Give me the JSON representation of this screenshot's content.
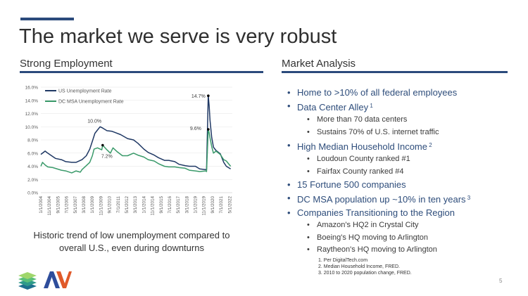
{
  "title": "The market we serve is very robust",
  "left_section": {
    "heading": "Strong Employment"
  },
  "right_section": {
    "heading": "Market Analysis"
  },
  "caption": "Historic trend of low unemployment compared to overall U.S., even during downturns",
  "bullets": [
    {
      "level": 1,
      "text": "Home to >10% of all federal employees",
      "sup": ""
    },
    {
      "level": 1,
      "text": "Data Center Alley",
      "sup": "1"
    },
    {
      "level": 2,
      "text": "More than 70 data centers",
      "sup": ""
    },
    {
      "level": 2,
      "text": "Sustains 70% of U.S. internet traffic",
      "sup": ""
    },
    {
      "level": 1,
      "text": "High Median Household Income",
      "sup": "2"
    },
    {
      "level": 2,
      "text": "Loudoun County ranked #1",
      "sup": ""
    },
    {
      "level": 2,
      "text": "Fairfax County ranked #4",
      "sup": ""
    },
    {
      "level": 1,
      "text": "15 Fortune 500 companies",
      "sup": ""
    },
    {
      "level": 1,
      "text": "DC MSA population up ~10% in ten years",
      "sup": "3"
    },
    {
      "level": 1,
      "text": "Companies Transitioning to the Region",
      "sup": ""
    },
    {
      "level": 2,
      "text": "Amazon's HQ2 in Crystal City",
      "sup": ""
    },
    {
      "level": 2,
      "text": "Boeing's HQ moving to Arlington",
      "sup": ""
    },
    {
      "level": 2,
      "text": "Raytheon's HQ moving to Arlington",
      "sup": ""
    }
  ],
  "footnotes": [
    "1.   Per DigitalTech.com",
    "2.   Median Household Income, FRED.",
    "3.   2010 to 2020 population change, FRED."
  ],
  "page_number": "5",
  "colors": {
    "accent": "#2b4a7c",
    "us_series": "#1f3864",
    "dc_series": "#3a9a6a"
  },
  "chart_data": {
    "type": "line",
    "ylim": [
      0,
      16
    ],
    "y_ticks": [
      0,
      2,
      4,
      6,
      8,
      10,
      12,
      14,
      16
    ],
    "y_tick_format": "{v}.0%",
    "x_ticks": [
      "1/1/2004",
      "11/1/2004",
      "9/1/2005",
      "7/1/2006",
      "5/1/2007",
      "3/1/2008",
      "1/1/2009",
      "11/1/2009",
      "9/1/2010",
      "7/1/2011",
      "5/1/2012",
      "3/1/2013",
      "1/1/2014",
      "11/1/2014",
      "9/1/2015",
      "7/1/2016",
      "5/1/2017",
      "3/1/2018",
      "1/1/2019",
      "11/1/2019",
      "9/1/2020",
      "7/1/2021",
      "5/1/2022"
    ],
    "legend_position": "top-left",
    "series": [
      {
        "name": "US Unemployment Rate",
        "color": "#1f3864",
        "points": [
          [
            "2004-01",
            5.8
          ],
          [
            "2004-06",
            6.3
          ],
          [
            "2004-09",
            6.0
          ],
          [
            "2005-06",
            5.2
          ],
          [
            "2006-01",
            5.0
          ],
          [
            "2006-06",
            4.7
          ],
          [
            "2007-01",
            4.6
          ],
          [
            "2007-06",
            4.6
          ],
          [
            "2008-01",
            5.0
          ],
          [
            "2008-06",
            5.6
          ],
          [
            "2008-10",
            6.6
          ],
          [
            "2009-01",
            7.8
          ],
          [
            "2009-04",
            9.0
          ],
          [
            "2009-07",
            9.5
          ],
          [
            "2009-10",
            10.0
          ],
          [
            "2010-01",
            9.8
          ],
          [
            "2010-06",
            9.4
          ],
          [
            "2010-12",
            9.3
          ],
          [
            "2011-04",
            9.1
          ],
          [
            "2011-10",
            8.8
          ],
          [
            "2012-06",
            8.2
          ],
          [
            "2013-01",
            8.0
          ],
          [
            "2013-06",
            7.5
          ],
          [
            "2014-01",
            6.6
          ],
          [
            "2014-06",
            6.1
          ],
          [
            "2015-01",
            5.7
          ],
          [
            "2015-06",
            5.3
          ],
          [
            "2016-01",
            4.9
          ],
          [
            "2016-06",
            4.9
          ],
          [
            "2017-01",
            4.7
          ],
          [
            "2017-06",
            4.3
          ],
          [
            "2018-01",
            4.1
          ],
          [
            "2018-06",
            4.0
          ],
          [
            "2019-01",
            4.0
          ],
          [
            "2019-06",
            3.6
          ],
          [
            "2020-01",
            3.5
          ],
          [
            "2020-02",
            3.5
          ],
          [
            "2020-04",
            14.7
          ],
          [
            "2020-05",
            13.2
          ],
          [
            "2020-06",
            11.0
          ],
          [
            "2020-08",
            8.4
          ],
          [
            "2020-10",
            6.9
          ],
          [
            "2021-01",
            6.4
          ],
          [
            "2021-06",
            5.9
          ],
          [
            "2021-10",
            4.6
          ],
          [
            "2022-01",
            4.0
          ],
          [
            "2022-06",
            3.6
          ]
        ]
      },
      {
        "name": "DC MSA Unemployment Rate",
        "color": "#3a9a6a",
        "points": [
          [
            "2004-01",
            4.0
          ],
          [
            "2004-03",
            4.6
          ],
          [
            "2004-06",
            4.2
          ],
          [
            "2004-09",
            3.9
          ],
          [
            "2005-03",
            3.8
          ],
          [
            "2006-01",
            3.4
          ],
          [
            "2006-06",
            3.3
          ],
          [
            "2007-01",
            3.0
          ],
          [
            "2007-06",
            3.3
          ],
          [
            "2007-11",
            3.1
          ],
          [
            "2008-01",
            3.5
          ],
          [
            "2008-06",
            4.1
          ],
          [
            "2008-10",
            4.6
          ],
          [
            "2009-01",
            5.6
          ],
          [
            "2009-03",
            6.6
          ],
          [
            "2009-07",
            6.8
          ],
          [
            "2009-12",
            6.5
          ],
          [
            "2010-01",
            7.2
          ],
          [
            "2010-06",
            6.5
          ],
          [
            "2010-10",
            6.0
          ],
          [
            "2011-01",
            6.8
          ],
          [
            "2011-06",
            6.2
          ],
          [
            "2011-12",
            5.6
          ],
          [
            "2012-06",
            5.6
          ],
          [
            "2013-01",
            6.0
          ],
          [
            "2013-06",
            5.7
          ],
          [
            "2014-01",
            5.4
          ],
          [
            "2014-06",
            5.0
          ],
          [
            "2015-01",
            4.8
          ],
          [
            "2015-06",
            4.4
          ],
          [
            "2016-01",
            4.0
          ],
          [
            "2016-06",
            3.9
          ],
          [
            "2017-01",
            3.9
          ],
          [
            "2017-06",
            3.8
          ],
          [
            "2018-01",
            3.7
          ],
          [
            "2018-06",
            3.4
          ],
          [
            "2019-01",
            3.3
          ],
          [
            "2019-06",
            3.2
          ],
          [
            "2020-01",
            3.3
          ],
          [
            "2020-02",
            3.2
          ],
          [
            "2020-04",
            9.6
          ],
          [
            "2020-05",
            9.1
          ],
          [
            "2020-06",
            8.3
          ],
          [
            "2020-08",
            7.0
          ],
          [
            "2020-10",
            6.0
          ],
          [
            "2021-01",
            6.3
          ],
          [
            "2021-06",
            5.8
          ],
          [
            "2021-10",
            5.0
          ],
          [
            "2022-01",
            4.8
          ],
          [
            "2022-06",
            4.0
          ]
        ]
      }
    ],
    "annotations": [
      {
        "text": "10.0%",
        "date": "2009-10",
        "value": 10.0,
        "marker": false
      },
      {
        "text": "7.2%",
        "date": "2010-01",
        "value": 7.2,
        "marker": true
      },
      {
        "text": "14.7%",
        "date": "2020-04",
        "value": 14.7,
        "marker": true
      },
      {
        "text": "9.6%",
        "date": "2020-04",
        "value": 9.6,
        "marker": true
      }
    ]
  }
}
